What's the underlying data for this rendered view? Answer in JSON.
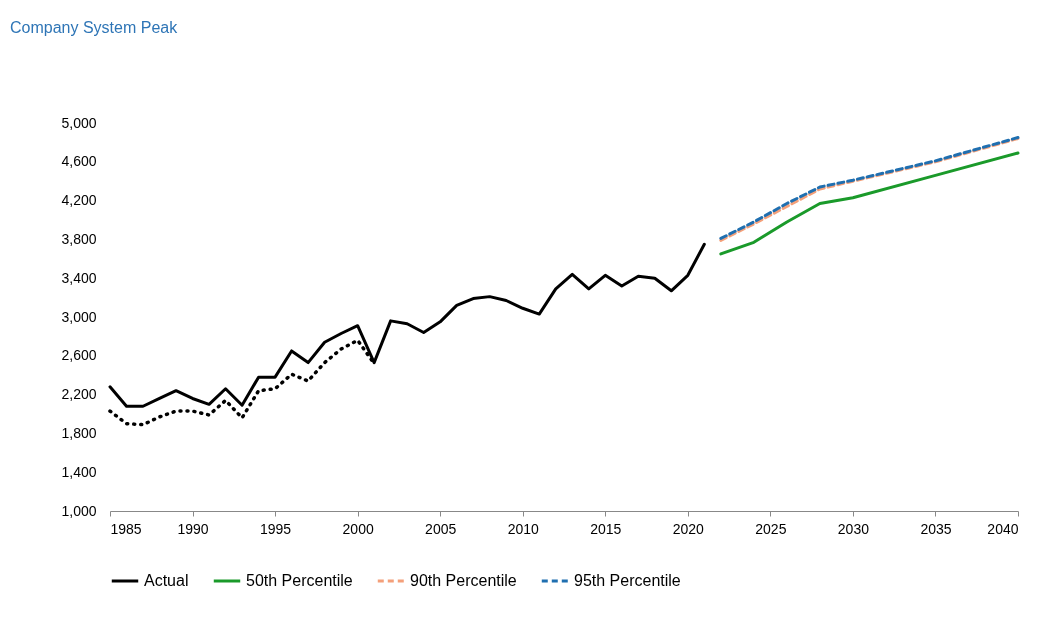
{
  "chart_data": {
    "type": "line",
    "title": "Company System Peak",
    "xlim": [
      1985,
      2040
    ],
    "xticks": [
      1985,
      1990,
      1995,
      2000,
      2005,
      2010,
      2015,
      2020,
      2025,
      2030,
      2035,
      2040
    ],
    "ylim": [
      1000,
      5000
    ],
    "yticks": [
      {
        "value": 1000,
        "label": "1,000"
      },
      {
        "value": 1400,
        "label": "1,400"
      },
      {
        "value": 1800,
        "label": "1,800"
      },
      {
        "value": 2200,
        "label": "2,200"
      },
      {
        "value": 2600,
        "label": "2,600"
      },
      {
        "value": 3000,
        "label": "3,000"
      },
      {
        "value": 3400,
        "label": "3,400"
      },
      {
        "value": 3800,
        "label": "3,800"
      },
      {
        "value": 4200,
        "label": "4,200"
      },
      {
        "value": 4600,
        "label": "4,600"
      },
      {
        "value": 5000,
        "label": "5,000"
      }
    ],
    "grid": false,
    "legend": "bottom",
    "marker": "none",
    "series": [
      {
        "name": "Actual",
        "color": "#000000",
        "line_style": "solid",
        "x": [
          1985,
          1986,
          1987,
          1988,
          1989,
          1990,
          1991,
          1992,
          1993,
          1994,
          1995,
          1996,
          1997,
          1998,
          1999,
          2000,
          2001,
          2002,
          2003,
          2004,
          2005,
          2006,
          2007,
          2008,
          2009,
          2010,
          2011,
          2012,
          2013,
          2014,
          2015,
          2016,
          2017,
          2018,
          2019,
          2020,
          2021
        ],
        "values": [
          2280,
          2080,
          2080,
          2160,
          2240,
          2160,
          2100,
          2260,
          2090,
          2380,
          2380,
          2650,
          2530,
          2740,
          2830,
          2910,
          2530,
          2960,
          2930,
          2840,
          2950,
          3120,
          3190,
          3210,
          3170,
          3090,
          3030,
          3290,
          3440,
          3290,
          3430,
          3320,
          3420,
          3400,
          3270,
          3430,
          3750
        ]
      },
      {
        "color": "#000000",
        "line_style": "dotted",
        "x": [
          1985,
          1986,
          1987,
          1988,
          1989,
          1990,
          1991,
          1992,
          1993,
          1994,
          1995,
          1996,
          1997,
          1998,
          1999,
          2000,
          2001
        ],
        "values": [
          2030,
          1900,
          1890,
          1970,
          2030,
          2030,
          1990,
          2140,
          1960,
          2240,
          2260,
          2410,
          2340,
          2530,
          2670,
          2760,
          2520
        ]
      },
      {
        "name": "50th Percentile",
        "color": "#1a9a2a",
        "line_style": "solid",
        "x": [
          2022,
          2024,
          2026,
          2028,
          2030,
          2035,
          2040
        ],
        "values": [
          3650,
          3770,
          3980,
          4170,
          4230,
          4460,
          4690
        ]
      },
      {
        "name": "90th Percentile",
        "color": "#f4a07a",
        "line_style": "dashed",
        "x": [
          2022,
          2024,
          2026,
          2028,
          2030,
          2035,
          2040
        ],
        "values": [
          3790,
          3960,
          4140,
          4320,
          4400,
          4600,
          4840
        ]
      },
      {
        "name": "95th Percentile",
        "color": "#1f6fb0",
        "line_style": "dashed",
        "x": [
          2022,
          2024,
          2026,
          2028,
          2030,
          2035,
          2040
        ],
        "values": [
          3810,
          3980,
          4170,
          4340,
          4410,
          4610,
          4850
        ]
      }
    ]
  }
}
